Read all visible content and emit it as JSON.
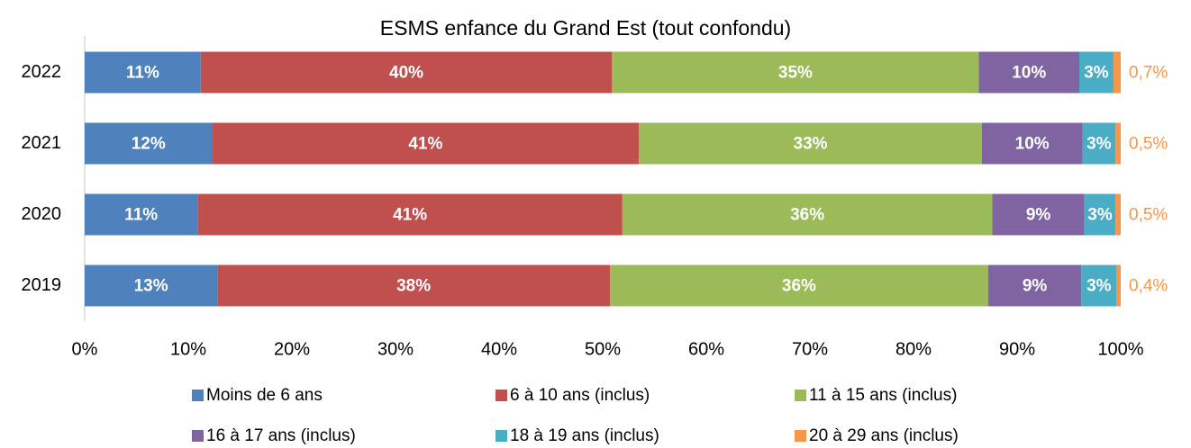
{
  "chart_data": {
    "type": "stacked-bar-horizontal",
    "title": "ESMS enfance du Grand Est (tout confondu)",
    "categories": [
      "2022",
      "2021",
      "2020",
      "2019"
    ],
    "series": [
      {
        "name": "Moins de 6 ans",
        "color": "#4f81bd",
        "values": [
          11.2,
          12.3,
          10.9,
          12.8
        ],
        "value_labels": [
          "11%",
          "12%",
          "11%",
          "13%"
        ]
      },
      {
        "name": "6 à 10 ans (inclus)",
        "color": "#c0504d",
        "values": [
          39.7,
          41.2,
          41.0,
          37.9
        ],
        "value_labels": [
          "40%",
          "41%",
          "41%",
          "38%"
        ]
      },
      {
        "name": "11 à 15 ans (inclus)",
        "color": "#9bbb59",
        "values": [
          35.4,
          33.1,
          35.7,
          36.5
        ],
        "value_labels": [
          "35%",
          "33%",
          "36%",
          "36%"
        ]
      },
      {
        "name": "16 à 17 ans (inclus)",
        "color": "#8064a2",
        "values": [
          9.7,
          9.7,
          8.9,
          9.0
        ],
        "value_labels": [
          "10%",
          "10%",
          "9%",
          "9%"
        ]
      },
      {
        "name": "18 à 19 ans (inclus)",
        "color": "#4bacc6",
        "values": [
          3.3,
          3.2,
          3.0,
          3.4
        ],
        "value_labels": [
          "3%",
          "3%",
          "3%",
          "3%"
        ]
      },
      {
        "name": "20 à 29 ans (inclus)",
        "color": "#f79646",
        "values": [
          0.7,
          0.5,
          0.5,
          0.4
        ],
        "value_labels": [
          "0,7%",
          "0,5%",
          "0,5%",
          "0,4%"
        ]
      }
    ],
    "xlim": [
      0,
      100
    ],
    "xticks": [
      {
        "value": 0,
        "label": "0%"
      },
      {
        "value": 10,
        "label": "10%"
      },
      {
        "value": 20,
        "label": "20%"
      },
      {
        "value": 30,
        "label": "30%"
      },
      {
        "value": 40,
        "label": "40%"
      },
      {
        "value": 50,
        "label": "50%"
      },
      {
        "value": 60,
        "label": "60%"
      },
      {
        "value": 70,
        "label": "70%"
      },
      {
        "value": 80,
        "label": "80%"
      },
      {
        "value": 90,
        "label": "90%"
      },
      {
        "value": 100,
        "label": "100%"
      }
    ],
    "grid": false,
    "legend": "bottom"
  }
}
